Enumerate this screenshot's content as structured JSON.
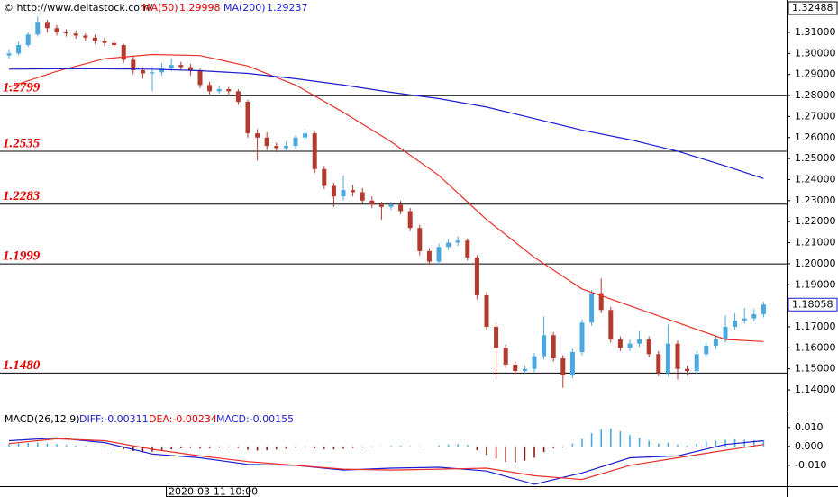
{
  "chart_data": [
    {
      "type": "candlestick",
      "header": {
        "source": "© http://www.deltastock.com/",
        "ma50_name": "MA(50)",
        "ma50_value": "1.29998",
        "ma200_name": "MA(200)",
        "ma200_value": "1.29237"
      },
      "ylim": [
        1.1306,
        1.3254
      ],
      "yticks": [
        {
          "value": 1.31,
          "label": "1.31000"
        },
        {
          "value": 1.3,
          "label": "1.30000"
        },
        {
          "value": 1.29,
          "label": "1.29000"
        },
        {
          "value": 1.28,
          "label": "1.28000"
        },
        {
          "value": 1.27,
          "label": "1.27000"
        },
        {
          "value": 1.26,
          "label": "1.26000"
        },
        {
          "value": 1.25,
          "label": "1.25000"
        },
        {
          "value": 1.24,
          "label": "1.24000"
        },
        {
          "value": 1.23,
          "label": "1.23000"
        },
        {
          "value": 1.22,
          "label": "1.22000"
        },
        {
          "value": 1.21,
          "label": "1.21000"
        },
        {
          "value": 1.2,
          "label": "1.20000"
        },
        {
          "value": 1.19,
          "label": "1.19000"
        },
        {
          "value": 1.18,
          "label": "1.18000"
        },
        {
          "value": 1.17,
          "label": "1.17000"
        },
        {
          "value": 1.16,
          "label": "1.16000"
        },
        {
          "value": 1.15,
          "label": "1.15000"
        },
        {
          "value": 1.14,
          "label": "1.14000"
        }
      ],
      "top_label": 1.32488,
      "last_price": 1.18058,
      "date_label": "2020-03-11 10:00",
      "up_color": "#4aa8e0",
      "down_color": "#b23a2e",
      "levels": [
        1.2799,
        1.2535,
        1.2283,
        1.1999,
        {
          "value": 1.148,
          "label": "1.1480"
        }
      ],
      "candles": [
        [
          1.299,
          1.302,
          1.2975,
          1.3
        ],
        [
          1.3,
          1.3055,
          1.299,
          1.304
        ],
        [
          1.304,
          1.31,
          1.303,
          1.309
        ],
        [
          1.309,
          1.3175,
          1.308,
          1.315
        ],
        [
          1.315,
          1.316,
          1.31,
          1.312
        ],
        [
          1.312,
          1.3135,
          1.3085,
          1.31
        ],
        [
          1.31,
          1.3115,
          1.308,
          1.3095
        ],
        [
          1.3095,
          1.311,
          1.307,
          1.3085
        ],
        [
          1.3085,
          1.3095,
          1.306,
          1.3075
        ],
        [
          1.3075,
          1.309,
          1.3045,
          1.306
        ],
        [
          1.306,
          1.3075,
          1.3035,
          1.305
        ],
        [
          1.305,
          1.3065,
          1.3025,
          1.304
        ],
        [
          1.304,
          1.3045,
          1.2955,
          1.297
        ],
        [
          1.297,
          1.2985,
          1.29,
          1.292
        ],
        [
          1.292,
          1.2935,
          1.288,
          1.2905
        ],
        [
          1.2905,
          1.2935,
          1.282,
          1.291
        ],
        [
          1.291,
          1.2955,
          1.2895,
          1.293
        ],
        [
          1.293,
          1.2975,
          1.2915,
          1.2945
        ],
        [
          1.2945,
          1.296,
          1.292,
          1.2935
        ],
        [
          1.2935,
          1.295,
          1.2895,
          1.292
        ],
        [
          1.292,
          1.293,
          1.2835,
          1.285
        ],
        [
          1.285,
          1.2865,
          1.2805,
          1.282
        ],
        [
          1.282,
          1.2845,
          1.281,
          1.283
        ],
        [
          1.283,
          1.284,
          1.2805,
          1.282
        ],
        [
          1.282,
          1.283,
          1.2755,
          1.277
        ],
        [
          1.277,
          1.278,
          1.26,
          1.262
        ],
        [
          1.262,
          1.264,
          1.249,
          1.26
        ],
        [
          1.26,
          1.2625,
          1.254,
          1.256
        ],
        [
          1.256,
          1.2575,
          1.253,
          1.255
        ],
        [
          1.255,
          1.258,
          1.2535,
          1.256
        ],
        [
          1.256,
          1.261,
          1.2545,
          1.26
        ],
        [
          1.26,
          1.264,
          1.2585,
          1.262
        ],
        [
          1.262,
          1.263,
          1.243,
          1.245
        ],
        [
          1.245,
          1.2465,
          1.2355,
          1.237
        ],
        [
          1.237,
          1.2385,
          1.227,
          1.232
        ],
        [
          1.232,
          1.242,
          1.23,
          1.235
        ],
        [
          1.235,
          1.2375,
          1.232,
          1.234
        ],
        [
          1.234,
          1.236,
          1.2285,
          1.23
        ],
        [
          1.23,
          1.232,
          1.2265,
          1.228
        ],
        [
          1.228,
          1.2295,
          1.221,
          1.227
        ],
        [
          1.227,
          1.2295,
          1.2255,
          1.228
        ],
        [
          1.228,
          1.23,
          1.2235,
          1.225
        ],
        [
          1.225,
          1.2265,
          1.2155,
          1.217
        ],
        [
          1.217,
          1.2185,
          1.204,
          1.206
        ],
        [
          1.206,
          1.2075,
          1.1995,
          1.201
        ],
        [
          1.201,
          1.2095,
          1.1995,
          1.208
        ],
        [
          1.208,
          1.2115,
          1.2065,
          1.21
        ],
        [
          1.21,
          1.213,
          1.2085,
          1.211
        ],
        [
          1.211,
          1.212,
          1.2015,
          1.203
        ],
        [
          1.203,
          1.204,
          1.183,
          1.185
        ],
        [
          1.185,
          1.1865,
          1.1685,
          1.17
        ],
        [
          1.17,
          1.1715,
          1.145,
          1.16
        ],
        [
          1.16,
          1.1615,
          1.1505,
          1.152
        ],
        [
          1.152,
          1.1535,
          1.1475,
          1.149
        ],
        [
          1.149,
          1.1515,
          1.1475,
          1.15
        ],
        [
          1.15,
          1.1575,
          1.1485,
          1.156
        ],
        [
          1.156,
          1.175,
          1.1545,
          1.166
        ],
        [
          1.166,
          1.1675,
          1.1535,
          1.155
        ],
        [
          1.155,
          1.1565,
          1.141,
          1.147
        ],
        [
          1.147,
          1.1595,
          1.1455,
          1.158
        ],
        [
          1.158,
          1.1735,
          1.1565,
          1.172
        ],
        [
          1.172,
          1.1875,
          1.1705,
          1.186
        ],
        [
          1.186,
          1.193,
          1.1765,
          1.178
        ],
        [
          1.178,
          1.1795,
          1.1625,
          1.164
        ],
        [
          1.164,
          1.1655,
          1.1585,
          1.16
        ],
        [
          1.16,
          1.164,
          1.1585,
          1.162
        ],
        [
          1.162,
          1.168,
          1.1605,
          1.164
        ],
        [
          1.164,
          1.1655,
          1.1555,
          1.157
        ],
        [
          1.157,
          1.1585,
          1.1465,
          1.148
        ],
        [
          1.148,
          1.171,
          1.1465,
          1.162
        ],
        [
          1.162,
          1.1635,
          1.145,
          1.15
        ],
        [
          1.15,
          1.1515,
          1.147,
          1.149
        ],
        [
          1.149,
          1.1585,
          1.1475,
          1.157
        ],
        [
          1.157,
          1.1625,
          1.1555,
          1.161
        ],
        [
          1.161,
          1.1655,
          1.1595,
          1.164
        ],
        [
          1.164,
          1.1755,
          1.1625,
          1.17
        ],
        [
          1.17,
          1.1765,
          1.1685,
          1.173
        ],
        [
          1.173,
          1.179,
          1.1715,
          1.174
        ],
        [
          1.174,
          1.1785,
          1.1725,
          1.176
        ],
        [
          1.176,
          1.182,
          1.1745,
          1.1806
        ]
      ],
      "series": [
        {
          "name": "MA(50)",
          "color": "#e8312a",
          "x": [
            0,
            5,
            10,
            15,
            20,
            25,
            30,
            35,
            40,
            45,
            50,
            55,
            60,
            65,
            70,
            75,
            79
          ],
          "values": [
            1.284,
            1.2915,
            1.2975,
            1.2995,
            1.299,
            1.294,
            1.285,
            1.272,
            1.258,
            1.242,
            1.221,
            1.203,
            1.188,
            1.18,
            1.172,
            1.164,
            1.163
          ]
        },
        {
          "name": "MA(200)",
          "color": "#1c1cd0",
          "x": [
            0,
            5,
            10,
            15,
            20,
            25,
            30,
            35,
            40,
            45,
            50,
            55,
            60,
            65,
            70,
            75,
            79
          ],
          "values": [
            1.2925,
            1.2927,
            1.2927,
            1.2925,
            1.2918,
            1.2905,
            1.288,
            1.285,
            1.2815,
            1.2785,
            1.2745,
            1.269,
            1.2635,
            1.259,
            1.2535,
            1.2465,
            1.2405
          ]
        }
      ]
    },
    {
      "type": "macd",
      "header": {
        "name": "MACD(26,12,9)",
        "diff": "DIFF:-0.00311",
        "dea": "DEA:-0.00234",
        "macd": "MACD:-0.00155"
      },
      "ylim": [
        -0.021,
        0.018
      ],
      "yticks": [
        {
          "value": 0.01,
          "label": "0.010"
        },
        {
          "value": 0,
          "label": "0.000"
        },
        {
          "value": -0.01,
          "label": "-0.010"
        }
      ],
      "up_color": "#4aa8e0",
      "down_color": "#8b1a1a",
      "histogram": [
        0.0012,
        0.0015,
        0.0018,
        0.002,
        0.0016,
        0.0012,
        0.0008,
        0.0005,
        0.0003,
        0.0001,
        -0.0002,
        -0.0005,
        -0.0015,
        -0.0025,
        -0.003,
        -0.0028,
        -0.0022,
        -0.0015,
        -0.001,
        -0.0008,
        -0.0012,
        -0.001,
        -0.0006,
        -0.0004,
        -0.0008,
        -0.0018,
        -0.0022,
        -0.002,
        -0.0016,
        -0.0012,
        -0.0006,
        -0.0002,
        -0.001,
        -0.0014,
        -0.0016,
        -0.0012,
        -0.0008,
        -0.0005,
        -0.0002,
        0.0001,
        0.0003,
        0.0004,
        0.0002,
        -0.0002,
        0.0,
        0.0006,
        0.001,
        0.0012,
        0.0008,
        -0.002,
        -0.0045,
        -0.0065,
        -0.008,
        -0.0085,
        -0.0075,
        -0.006,
        -0.003,
        -0.001,
        -0.0005,
        0.0015,
        0.004,
        0.007,
        0.009,
        0.0095,
        0.008,
        0.006,
        0.0045,
        0.003,
        0.0015,
        0.002,
        0.001,
        0.0005,
        0.0015,
        0.0025,
        0.003,
        0.0035,
        0.0038,
        0.0035,
        0.0033,
        0.0031
      ],
      "series": [
        {
          "name": "DIFF",
          "color": "#1c1cd0",
          "x": [
            0,
            5,
            10,
            15,
            20,
            25,
            30,
            35,
            40,
            45,
            50,
            55,
            60,
            65,
            70,
            75,
            79
          ],
          "values": [
            0.003,
            0.0045,
            0.002,
            -0.004,
            -0.006,
            -0.0095,
            -0.01,
            -0.0125,
            -0.0115,
            -0.011,
            -0.013,
            -0.02,
            -0.014,
            -0.006,
            -0.005,
            0.001,
            0.003
          ]
        },
        {
          "name": "DEA",
          "color": "#e8312a",
          "x": [
            0,
            5,
            10,
            15,
            20,
            25,
            30,
            35,
            40,
            45,
            50,
            55,
            60,
            65,
            70,
            75,
            79
          ],
          "values": [
            0.0015,
            0.004,
            0.003,
            -0.0015,
            -0.005,
            -0.008,
            -0.01,
            -0.012,
            -0.0125,
            -0.012,
            -0.0115,
            -0.0155,
            -0.0175,
            -0.01,
            -0.006,
            -0.002,
            0.001
          ]
        }
      ]
    }
  ]
}
